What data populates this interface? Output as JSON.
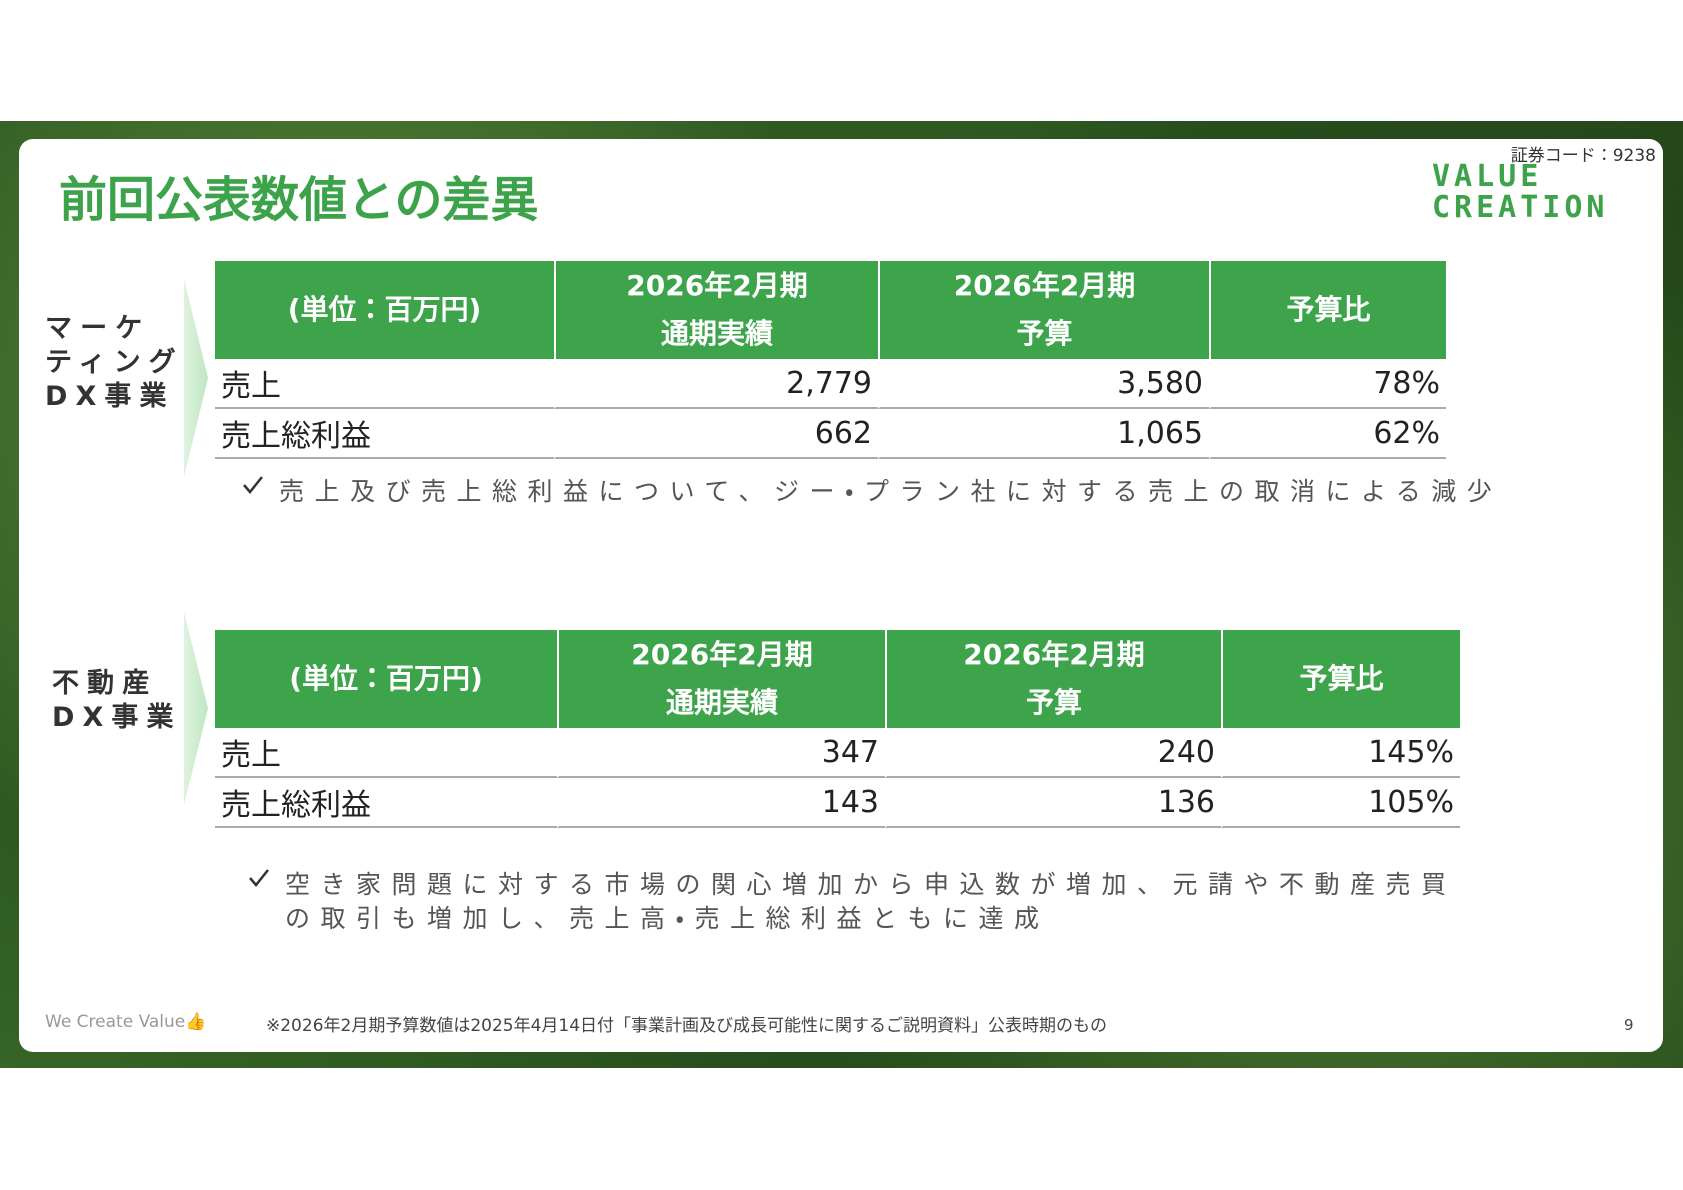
{
  "header": {
    "title": "前回公表数値との差異",
    "security_code": "証券コード：9238",
    "logo": [
      "VALUE",
      "CREATION"
    ]
  },
  "sections": [
    {
      "label": [
        "マーケ",
        "ティング",
        "DX事業"
      ],
      "table": {
        "header": [
          "(単位：百万円)",
          [
            "2026年2月期",
            "通期実績"
          ],
          [
            "2026年2月期",
            "予算"
          ],
          "予算比"
        ],
        "rows": [
          [
            "売上",
            "2,779",
            "3,580",
            "78%"
          ],
          [
            "売上総利益",
            "662",
            "1,065",
            "62%"
          ]
        ]
      },
      "notes": [
        "売上及び売上総利益について、ジー・プラン社に対する売上の取消による減少"
      ]
    },
    {
      "label": [
        "不動産",
        "DX事業"
      ],
      "table": {
        "header": [
          "(単位：百万円)",
          [
            "2026年2月期",
            "通期実績"
          ],
          [
            "2026年2月期",
            "予算"
          ],
          "予算比"
        ],
        "rows": [
          [
            "売上",
            "347",
            "240",
            "145%"
          ],
          [
            "売上総利益",
            "143",
            "136",
            "105%"
          ]
        ]
      },
      "notes": [
        "空き家問題に対する市場の関心増加から申込数が増加、元請や不動産売買",
        "の取引も増加し、売上高・売上総利益ともに達成"
      ]
    }
  ],
  "footer": {
    "tagline": "We Create Value👍",
    "footnote": "※2026年2月期予算数値は2025年4月14日付「事業計画及び成長可能性に関するご説明資料」公表時期のもの",
    "page": "9"
  }
}
